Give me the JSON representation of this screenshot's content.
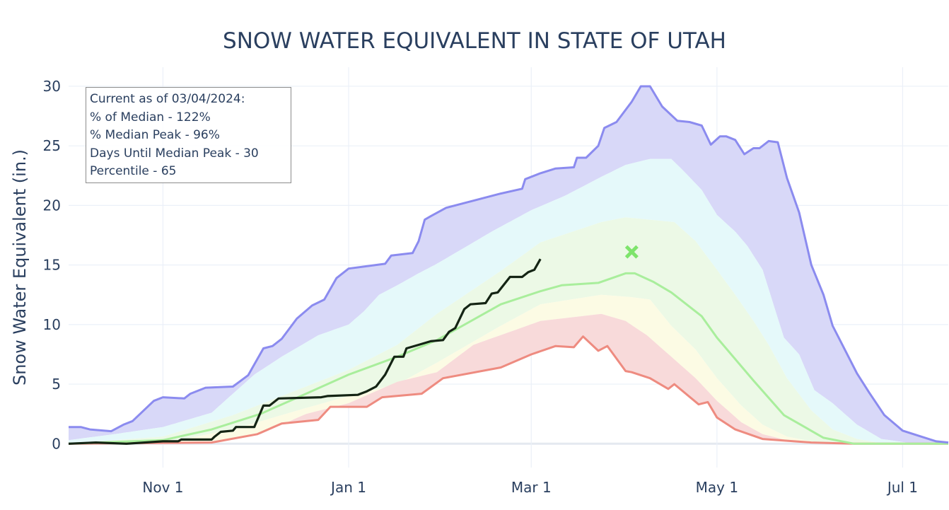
{
  "chart_data": {
    "type": "area",
    "title": "SNOW WATER EQUIVALENT IN STATE OF UTAH",
    "xlabel": "",
    "ylabel": "Snow Water Equivalent (in.)",
    "xlim": [
      "2023-10-01",
      "2024-07-16"
    ],
    "ylim": [
      -2,
      31.6
    ],
    "grid": true,
    "x_ticks": [
      {
        "date": "2023-11-01",
        "label": "Nov 1"
      },
      {
        "date": "2024-01-01",
        "label": "Jan 1"
      },
      {
        "date": "2024-03-01",
        "label": "Mar 1"
      },
      {
        "date": "2024-05-01",
        "label": "May 1"
      },
      {
        "date": "2024-07-01",
        "label": "Jul 1"
      }
    ],
    "y_ticks": [
      0,
      5,
      10,
      15,
      20,
      25,
      30
    ],
    "colors": {
      "max_line": "#8b8bef",
      "max_fill": "#d8d8f8",
      "p90_fill": "#e5f9fa",
      "p70_fill": "#ecf9e6",
      "p30_fill": "#fcfbe4",
      "p10_fill": "#f8dada",
      "median_line": "#a9ee9c",
      "min_line": "#ee8b80",
      "current_line": "#142414",
      "peak_marker": "#7ee46c",
      "grid": "#ebf0f8",
      "zero_line": "#e4e9f0"
    },
    "bands": {
      "max": [
        [
          "2023-10-01",
          1.4
        ],
        [
          "2023-10-05",
          1.4
        ],
        [
          "2023-10-08",
          1.2
        ],
        [
          "2023-10-15",
          1.05
        ],
        [
          "2023-10-19",
          1.6
        ],
        [
          "2023-10-22",
          1.9
        ],
        [
          "2023-10-29",
          3.6
        ],
        [
          "2023-11-01",
          3.9
        ],
        [
          "2023-11-08",
          3.8
        ],
        [
          "2023-11-10",
          4.2
        ],
        [
          "2023-11-15",
          4.7
        ],
        [
          "2023-11-24",
          4.8
        ],
        [
          "2023-11-29",
          5.75
        ],
        [
          "2023-12-04",
          8.0
        ],
        [
          "2023-12-07",
          8.2
        ],
        [
          "2023-12-10",
          8.8
        ],
        [
          "2023-12-15",
          10.5
        ],
        [
          "2023-12-20",
          11.6
        ],
        [
          "2023-12-24",
          12.1
        ],
        [
          "2023-12-28",
          13.9
        ],
        [
          "2024-01-01",
          14.7
        ],
        [
          "2024-01-13",
          15.1
        ],
        [
          "2024-01-15",
          15.8
        ],
        [
          "2024-01-22",
          16.0
        ],
        [
          "2024-01-24",
          17.0
        ],
        [
          "2024-01-26",
          18.8
        ],
        [
          "2024-01-28",
          19.1
        ],
        [
          "2024-02-02",
          19.8
        ],
        [
          "2024-02-11",
          20.4
        ],
        [
          "2024-02-20",
          21.0
        ],
        [
          "2024-02-27",
          21.4
        ],
        [
          "2024-02-28",
          22.2
        ],
        [
          "2024-03-04",
          22.7
        ],
        [
          "2024-03-09",
          23.1
        ],
        [
          "2024-03-15",
          23.2
        ],
        [
          "2024-03-16",
          24.0
        ],
        [
          "2024-03-19",
          24.0
        ],
        [
          "2024-03-23",
          25.0
        ],
        [
          "2024-03-25",
          26.5
        ],
        [
          "2024-03-29",
          27.0
        ],
        [
          "2024-04-03",
          28.7
        ],
        [
          "2024-04-06",
          30.0
        ],
        [
          "2024-04-09",
          30.0
        ],
        [
          "2024-04-13",
          28.3
        ],
        [
          "2024-04-18",
          27.1
        ],
        [
          "2024-04-22",
          27.0
        ],
        [
          "2024-04-26",
          26.7
        ],
        [
          "2024-04-29",
          25.1
        ],
        [
          "2024-05-02",
          25.8
        ],
        [
          "2024-05-04",
          25.8
        ],
        [
          "2024-05-07",
          25.5
        ],
        [
          "2024-05-10",
          24.3
        ],
        [
          "2024-05-13",
          24.8
        ],
        [
          "2024-05-15",
          24.8
        ],
        [
          "2024-05-18",
          25.4
        ],
        [
          "2024-05-21",
          25.3
        ],
        [
          "2024-05-24",
          22.3
        ],
        [
          "2024-05-28",
          19.4
        ],
        [
          "2024-06-01",
          15.0
        ],
        [
          "2024-06-05",
          12.5
        ],
        [
          "2024-06-08",
          9.9
        ],
        [
          "2024-06-16",
          5.9
        ],
        [
          "2024-06-20",
          4.3
        ],
        [
          "2024-06-25",
          2.4
        ],
        [
          "2024-07-01",
          1.1
        ],
        [
          "2024-07-12",
          0.2
        ],
        [
          "2024-07-16",
          0.1
        ]
      ],
      "p90": [
        [
          "2023-10-01",
          0.3
        ],
        [
          "2023-10-16",
          0.8
        ],
        [
          "2023-11-01",
          1.4
        ],
        [
          "2023-11-17",
          2.6
        ],
        [
          "2023-12-01",
          5.8
        ],
        [
          "2023-12-10",
          7.3
        ],
        [
          "2023-12-22",
          9.1
        ],
        [
          "2024-01-01",
          10.0
        ],
        [
          "2024-01-06",
          11.1
        ],
        [
          "2024-01-11",
          12.5
        ],
        [
          "2024-01-17",
          13.3
        ],
        [
          "2024-01-24",
          14.3
        ],
        [
          "2024-01-30",
          15.1
        ],
        [
          "2024-02-17",
          17.8
        ],
        [
          "2024-03-01",
          19.6
        ],
        [
          "2024-03-12",
          20.8
        ],
        [
          "2024-03-24",
          22.4
        ],
        [
          "2024-04-01",
          23.4
        ],
        [
          "2024-04-09",
          23.9
        ],
        [
          "2024-04-16",
          23.9
        ],
        [
          "2024-04-20",
          22.9
        ],
        [
          "2024-04-26",
          21.3
        ],
        [
          "2024-05-01",
          19.2
        ],
        [
          "2024-05-07",
          17.8
        ],
        [
          "2024-05-11",
          16.6
        ],
        [
          "2024-05-16",
          14.6
        ],
        [
          "2024-05-23",
          8.9
        ],
        [
          "2024-05-28",
          7.5
        ],
        [
          "2024-06-02",
          4.5
        ],
        [
          "2024-06-08",
          3.4
        ],
        [
          "2024-06-16",
          1.6
        ],
        [
          "2024-06-24",
          0.4
        ],
        [
          "2024-07-05",
          0
        ],
        [
          "2024-07-16",
          0
        ]
      ],
      "p70": [
        [
          "2023-10-01",
          0
        ],
        [
          "2023-11-01",
          0.6
        ],
        [
          "2023-11-24",
          2.4
        ],
        [
          "2023-12-18",
          4.8
        ],
        [
          "2024-01-01",
          6.2
        ],
        [
          "2024-01-17",
          8.3
        ],
        [
          "2024-01-30",
          10.9
        ],
        [
          "2024-02-20",
          14.5
        ],
        [
          "2024-03-04",
          16.9
        ],
        [
          "2024-03-24",
          18.6
        ],
        [
          "2024-04-01",
          19.0
        ],
        [
          "2024-04-09",
          18.8
        ],
        [
          "2024-04-17",
          18.6
        ],
        [
          "2024-04-24",
          17.0
        ],
        [
          "2024-05-01",
          14.6
        ],
        [
          "2024-05-07",
          12.5
        ],
        [
          "2024-05-13",
          10.3
        ],
        [
          "2024-05-18",
          8.3
        ],
        [
          "2024-05-24",
          5.5
        ],
        [
          "2024-06-01",
          2.8
        ],
        [
          "2024-06-08",
          1.2
        ],
        [
          "2024-06-16",
          0.4
        ],
        [
          "2024-06-25",
          0
        ],
        [
          "2024-07-16",
          0
        ]
      ],
      "median": [
        [
          "2023-10-01",
          0
        ],
        [
          "2023-11-01",
          0.3
        ],
        [
          "2023-11-17",
          1.2
        ],
        [
          "2023-12-03",
          2.5
        ],
        [
          "2023-12-18",
          4.2
        ],
        [
          "2024-01-01",
          5.8
        ],
        [
          "2024-01-17",
          7.3
        ],
        [
          "2024-01-30",
          8.7
        ],
        [
          "2024-02-20",
          11.7
        ],
        [
          "2024-03-04",
          12.8
        ],
        [
          "2024-03-11",
          13.3
        ],
        [
          "2024-03-23",
          13.5
        ],
        [
          "2024-04-01",
          14.3
        ],
        [
          "2024-04-04",
          14.3
        ],
        [
          "2024-04-10",
          13.6
        ],
        [
          "2024-04-16",
          12.7
        ],
        [
          "2024-04-26",
          10.7
        ],
        [
          "2024-05-01",
          8.9
        ],
        [
          "2024-05-13",
          5.3
        ],
        [
          "2024-05-23",
          2.4
        ],
        [
          "2024-06-05",
          0.5
        ],
        [
          "2024-06-15",
          0
        ],
        [
          "2024-07-16",
          0
        ]
      ],
      "p30": [
        [
          "2023-10-01",
          0
        ],
        [
          "2023-11-01",
          0.05
        ],
        [
          "2023-11-24",
          1.2
        ],
        [
          "2023-12-18",
          3.0
        ],
        [
          "2024-01-01",
          4.0
        ],
        [
          "2024-01-17",
          5.0
        ],
        [
          "2024-01-30",
          6.8
        ],
        [
          "2024-02-20",
          9.9
        ],
        [
          "2024-03-04",
          11.7
        ],
        [
          "2024-03-24",
          12.5
        ],
        [
          "2024-04-03",
          12.3
        ],
        [
          "2024-04-09",
          12.1
        ],
        [
          "2024-04-16",
          9.9
        ],
        [
          "2024-04-24",
          7.9
        ],
        [
          "2024-05-01",
          5.5
        ],
        [
          "2024-05-09",
          3.2
        ],
        [
          "2024-05-16",
          1.6
        ],
        [
          "2024-05-24",
          0.6
        ],
        [
          "2024-06-05",
          0
        ],
        [
          "2024-07-16",
          0
        ]
      ],
      "p10": [
        [
          "2023-10-01",
          0
        ],
        [
          "2023-11-17",
          0.2
        ],
        [
          "2023-12-03",
          0.8
        ],
        [
          "2023-12-18",
          2.5
        ],
        [
          "2024-01-01",
          3.4
        ],
        [
          "2024-01-17",
          5.2
        ],
        [
          "2024-01-30",
          6.0
        ],
        [
          "2024-02-11",
          8.3
        ],
        [
          "2024-03-04",
          10.3
        ],
        [
          "2024-03-24",
          10.9
        ],
        [
          "2024-04-01",
          10.3
        ],
        [
          "2024-04-08",
          9.1
        ],
        [
          "2024-04-16",
          7.3
        ],
        [
          "2024-04-24",
          5.5
        ],
        [
          "2024-05-01",
          3.6
        ],
        [
          "2024-05-09",
          1.8
        ],
        [
          "2024-05-16",
          0.8
        ],
        [
          "2024-05-24",
          0.3
        ],
        [
          "2024-06-05",
          0
        ],
        [
          "2024-07-16",
          0
        ]
      ],
      "min": [
        [
          "2023-10-01",
          0
        ],
        [
          "2023-11-17",
          0.1
        ],
        [
          "2023-12-02",
          0.8
        ],
        [
          "2023-12-10",
          1.7
        ],
        [
          "2023-12-22",
          2.0
        ],
        [
          "2023-12-26",
          3.1
        ],
        [
          "2024-01-07",
          3.1
        ],
        [
          "2024-01-12",
          3.9
        ],
        [
          "2024-01-25",
          4.2
        ],
        [
          "2024-02-01",
          5.5
        ],
        [
          "2024-02-20",
          6.4
        ],
        [
          "2024-03-01",
          7.5
        ],
        [
          "2024-03-09",
          8.2
        ],
        [
          "2024-03-15",
          8.1
        ],
        [
          "2024-03-18",
          9.0
        ],
        [
          "2024-03-23",
          7.8
        ],
        [
          "2024-03-26",
          8.2
        ],
        [
          "2024-04-01",
          6.1
        ],
        [
          "2024-04-03",
          6.0
        ],
        [
          "2024-04-09",
          5.5
        ],
        [
          "2024-04-15",
          4.6
        ],
        [
          "2024-04-17",
          5.0
        ],
        [
          "2024-04-25",
          3.3
        ],
        [
          "2024-04-28",
          3.5
        ],
        [
          "2024-05-01",
          2.2
        ],
        [
          "2024-05-07",
          1.2
        ],
        [
          "2024-05-16",
          0.4
        ],
        [
          "2024-06-01",
          0.1
        ],
        [
          "2024-06-15",
          0
        ],
        [
          "2024-07-16",
          0
        ]
      ]
    },
    "current": [
      [
        "2023-10-01",
        0
      ],
      [
        "2023-10-10",
        0.1
      ],
      [
        "2023-10-20",
        0
      ],
      [
        "2023-11-01",
        0.2
      ],
      [
        "2023-11-06",
        0.2
      ],
      [
        "2023-11-07",
        0.35
      ],
      [
        "2023-11-17",
        0.35
      ],
      [
        "2023-11-18",
        0.6
      ],
      [
        "2023-11-20",
        1.0
      ],
      [
        "2023-11-24",
        1.1
      ],
      [
        "2023-11-25",
        1.4
      ],
      [
        "2023-12-01",
        1.4
      ],
      [
        "2023-12-04",
        3.2
      ],
      [
        "2023-12-06",
        3.2
      ],
      [
        "2023-12-09",
        3.8
      ],
      [
        "2023-12-23",
        3.9
      ],
      [
        "2023-12-25",
        4.0
      ],
      [
        "2024-01-04",
        4.1
      ],
      [
        "2024-01-07",
        4.4
      ],
      [
        "2024-01-10",
        4.8
      ],
      [
        "2024-01-13",
        5.8
      ],
      [
        "2024-01-16",
        7.3
      ],
      [
        "2024-01-19",
        7.3
      ],
      [
        "2024-01-20",
        8.0
      ],
      [
        "2024-01-24",
        8.3
      ],
      [
        "2024-01-28",
        8.6
      ],
      [
        "2024-02-01",
        8.7
      ],
      [
        "2024-02-03",
        9.4
      ],
      [
        "2024-02-05",
        9.7
      ],
      [
        "2024-02-08",
        11.3
      ],
      [
        "2024-02-10",
        11.7
      ],
      [
        "2024-02-15",
        11.8
      ],
      [
        "2024-02-17",
        12.6
      ],
      [
        "2024-02-19",
        12.7
      ],
      [
        "2024-02-23",
        14.0
      ],
      [
        "2024-02-27",
        14.0
      ],
      [
        "2024-02-29",
        14.4
      ],
      [
        "2024-03-02",
        14.6
      ],
      [
        "2024-03-04",
        15.5
      ]
    ],
    "median_peak_marker": {
      "date": "2024-04-03",
      "value": 16.1,
      "symbol": "x"
    },
    "annotation": {
      "lines": [
        "Current as of 03/04/2024:",
        "% of Median - 122%",
        "% Median Peak - 96%",
        "Days Until Median Peak - 30",
        "Percentile - 65"
      ]
    }
  }
}
